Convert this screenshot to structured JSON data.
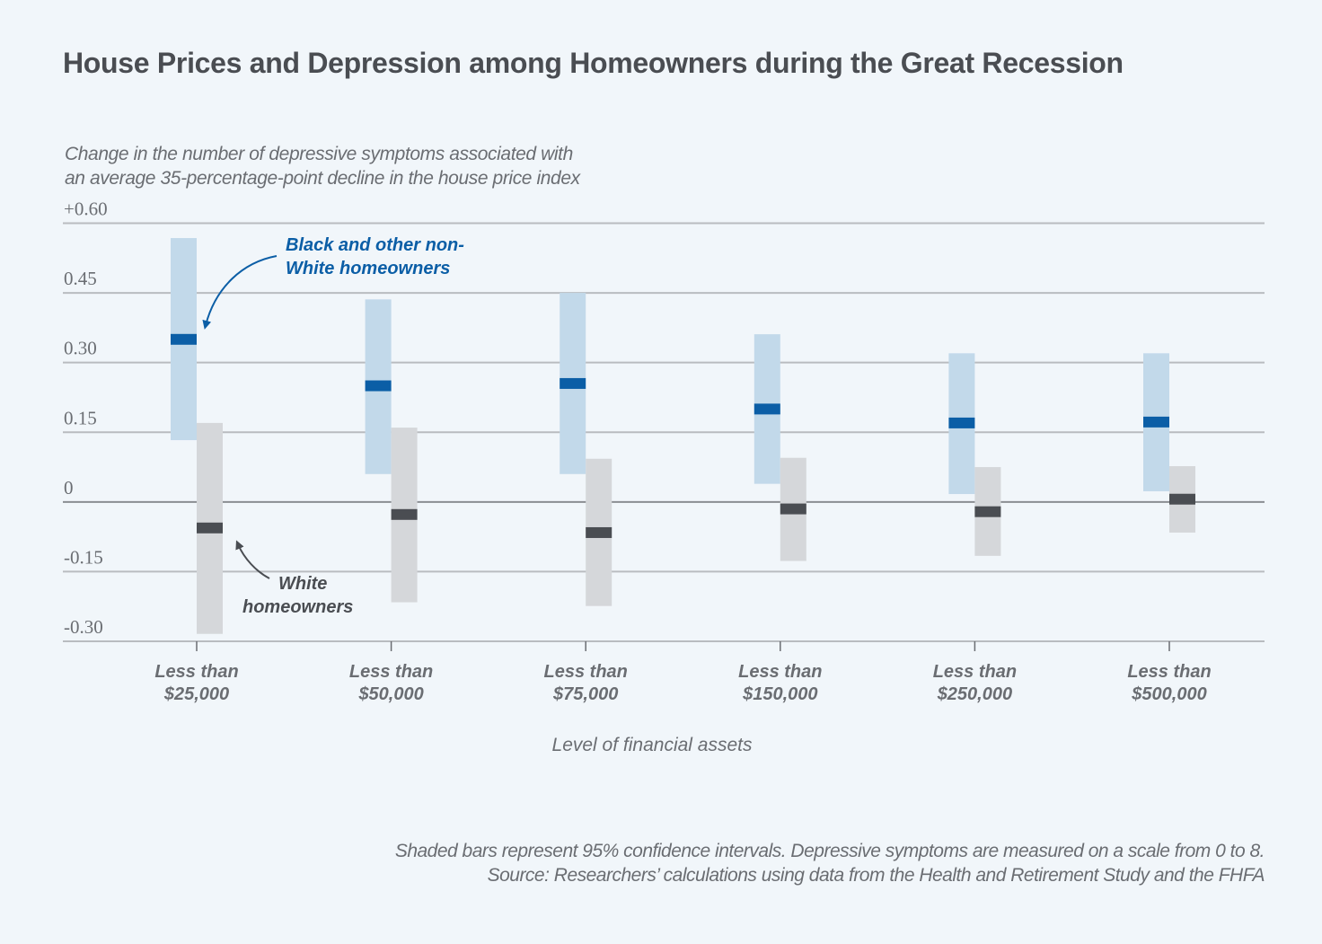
{
  "chart_data": {
    "type": "range_with_point",
    "title": "House Prices and Depression among Homeowners during the Great Recession",
    "ylabel_lines": [
      "Change in the number of depressive symptoms associated with",
      "an average 35-percentage-point decline in the house price index"
    ],
    "xlabel": "Level of financial assets",
    "ylim": [
      -0.3,
      0.6
    ],
    "yticks": [
      0.6,
      0.45,
      0.3,
      0.15,
      0,
      -0.15,
      -0.3
    ],
    "ytick_labels": [
      "+0.60",
      "0.45",
      "0.30",
      "0.15",
      "0",
      "-0.15",
      "-0.30"
    ],
    "grid": true,
    "categories": [
      [
        "Less than",
        "$25,000"
      ],
      [
        "Less than",
        "$50,000"
      ],
      [
        "Less than",
        "$75,000"
      ],
      [
        "Less than",
        "$150,000"
      ],
      [
        "Less than",
        "$250,000"
      ],
      [
        "Less than",
        "$500,000"
      ]
    ],
    "series": [
      {
        "name": "Black and other non-White homeowners",
        "ci_color": "#c2d9ea",
        "point_color": "#0b5ea6",
        "estimate": [
          0.35,
          0.25,
          0.255,
          0.2,
          0.17,
          0.172
        ],
        "ci_low": [
          0.133,
          0.06,
          0.06,
          0.039,
          0.017,
          0.023
        ],
        "ci_high": [
          0.568,
          0.436,
          0.45,
          0.361,
          0.32,
          0.32
        ]
      },
      {
        "name": "White homeowners",
        "ci_color": "#d5d7da",
        "point_color": "#4a4d52",
        "estimate": [
          -0.056,
          -0.027,
          -0.066,
          -0.015,
          -0.021,
          0.006
        ],
        "ci_low": [
          -0.284,
          -0.216,
          -0.224,
          -0.127,
          -0.116,
          -0.066
        ],
        "ci_high": [
          0.17,
          0.16,
          0.093,
          0.095,
          0.075,
          0.077
        ]
      }
    ],
    "annotations": [
      {
        "series": 0,
        "lines": [
          "Black and other non-",
          "White homeowners"
        ]
      },
      {
        "series": 1,
        "lines": [
          "White",
          "homeowners"
        ]
      }
    ],
    "footnote_lines": [
      "Shaded bars represent 95% confidence intervals. Depressive symptoms are measured on a scale from 0 to 8.",
      "Source: Researchers’ calculations using data from the Health and Retirement Study and the FHFA"
    ],
    "colors": {
      "background": "#f1f6fa",
      "grid": "#b9bcc0",
      "zero_line": "#8a8d92",
      "text": "#6a6d72"
    }
  }
}
